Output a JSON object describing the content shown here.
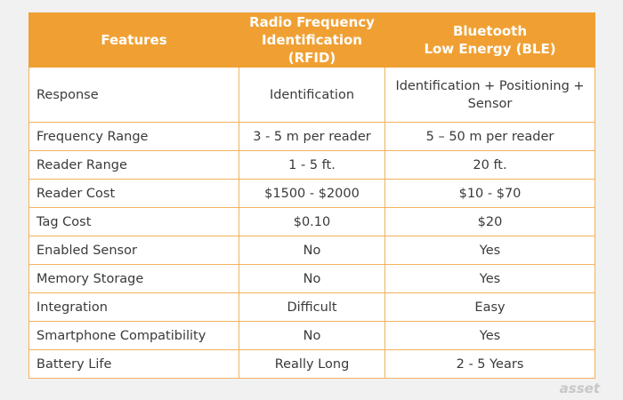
{
  "table": {
    "header": [
      [
        "Features"
      ],
      [
        "Radio Frequency",
        "Identification (RFID)"
      ],
      [
        "Bluetooth",
        "Low Energy (BLE)"
      ]
    ],
    "rows": [
      [
        "Response",
        "Identification",
        "Identification + Positioning + Sensor"
      ],
      [
        "Frequency Range",
        "3 - 5 m per reader",
        "5 – 50 m per reader"
      ],
      [
        "Reader Range",
        "1 - 5 ft.",
        "20 ft."
      ],
      [
        "Reader Cost",
        "$1500 - $2000",
        "$10 - $70"
      ],
      [
        "Tag Cost",
        "$0.10",
        "$20"
      ],
      [
        "Enabled Sensor",
        "No",
        "Yes"
      ],
      [
        "Memory Storage",
        "No",
        "Yes"
      ],
      [
        "Integration",
        "Difficult",
        "Easy"
      ],
      [
        "Smartphone Compatibility",
        "No",
        "Yes"
      ],
      [
        "Battery Life",
        "Really Long",
        "2 - 5 Years"
      ]
    ]
  },
  "watermark": "asset"
}
